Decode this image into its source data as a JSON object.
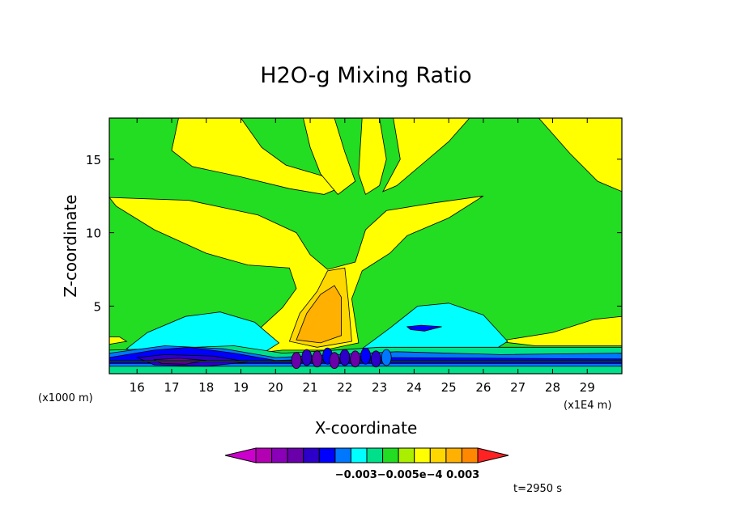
{
  "chart_data": {
    "type": "heatmap",
    "title": "H2O-g Mixing Ratio",
    "xlabel": "X-coordinate",
    "ylabel": "Z-coordinate",
    "x_unit_label": "(x1E4 m)",
    "y_unit_label": "(x1000 m)",
    "xlim": [
      15.2,
      30.0
    ],
    "ylim": [
      0.4,
      17.8
    ],
    "x_ticks": [
      16,
      17,
      18,
      19,
      20,
      21,
      22,
      23,
      24,
      25,
      26,
      27,
      28,
      29
    ],
    "y_ticks": [
      5,
      10,
      15
    ],
    "time_label": "t=2950 s",
    "colorbar": {
      "colors": [
        "#cc00cc",
        "#b300b3",
        "#8a00b8",
        "#6a00aa",
        "#2c00c8",
        "#0000ff",
        "#0077ff",
        "#00ffff",
        "#00e08a",
        "#22dd22",
        "#aaee00",
        "#ffff00",
        "#ffd700",
        "#ffb000",
        "#ff8800",
        "#ff2222"
      ],
      "tick_labels": [
        "-0.003",
        "-0.005e-4",
        "0.003"
      ],
      "tick_label_text": "−0.003−0.005e−4   0.003"
    },
    "background_level": "#22dd22",
    "regions": [
      {
        "level": "#ffff00",
        "description": "upper plume and anvil",
        "pts": [
          [
            15.2,
            12.4
          ],
          [
            17.5,
            12.2
          ],
          [
            19.5,
            11.2
          ],
          [
            20.6,
            10.0
          ],
          [
            21.0,
            8.5
          ],
          [
            21.5,
            7.5
          ],
          [
            22.3,
            8.0
          ],
          [
            22.6,
            10.2
          ],
          [
            23.2,
            11.5
          ],
          [
            24.5,
            12.0
          ],
          [
            26.0,
            12.5
          ],
          [
            25.0,
            11.0
          ],
          [
            23.8,
            9.8
          ],
          [
            23.3,
            8.6
          ],
          [
            22.5,
            7.4
          ],
          [
            22.2,
            5.5
          ],
          [
            22.4,
            2.5
          ],
          [
            21.4,
            2.0
          ],
          [
            20.2,
            2.0
          ],
          [
            19.4,
            1.8
          ],
          [
            19.0,
            2.5
          ],
          [
            19.6,
            3.6
          ],
          [
            20.2,
            4.9
          ],
          [
            20.6,
            6.2
          ],
          [
            20.4,
            7.6
          ],
          [
            19.2,
            7.8
          ],
          [
            18.0,
            8.6
          ],
          [
            16.5,
            10.2
          ],
          [
            15.4,
            11.8
          ]
        ]
      },
      {
        "level": "#ffff00",
        "pts": [
          [
            17.2,
            17.8
          ],
          [
            19.0,
            17.8
          ],
          [
            19.6,
            15.8
          ],
          [
            20.3,
            14.6
          ],
          [
            21.3,
            13.9
          ],
          [
            22.0,
            13.2
          ],
          [
            21.4,
            12.6
          ],
          [
            20.4,
            13.0
          ],
          [
            19.0,
            13.8
          ],
          [
            17.6,
            14.5
          ],
          [
            17.0,
            15.6
          ]
        ]
      },
      {
        "level": "#ffff00",
        "pts": [
          [
            20.8,
            17.8
          ],
          [
            21.7,
            17.8
          ],
          [
            22.0,
            15.5
          ],
          [
            22.3,
            13.5
          ],
          [
            21.8,
            12.6
          ],
          [
            21.3,
            14.0
          ],
          [
            21.0,
            15.8
          ]
        ]
      },
      {
        "level": "#ffff00",
        "pts": [
          [
            22.5,
            17.8
          ],
          [
            23.0,
            17.8
          ],
          [
            23.2,
            15.0
          ],
          [
            23.0,
            13.2
          ],
          [
            22.6,
            12.6
          ],
          [
            22.4,
            14.0
          ]
        ]
      },
      {
        "level": "#ffff00",
        "pts": [
          [
            23.4,
            17.8
          ],
          [
            25.6,
            17.8
          ],
          [
            25.0,
            16.2
          ],
          [
            24.3,
            14.8
          ],
          [
            23.5,
            13.2
          ],
          [
            23.1,
            12.8
          ],
          [
            23.6,
            15.0
          ]
        ]
      },
      {
        "level": "#ffff00",
        "pts": [
          [
            26.4,
            17.8
          ],
          [
            27.6,
            17.8
          ],
          [
            28.5,
            15.4
          ],
          [
            29.3,
            13.5
          ],
          [
            30.0,
            12.8
          ],
          [
            30.0,
            17.8
          ]
        ]
      },
      {
        "level": "#ffff00",
        "pts": [
          [
            26.4,
            2.6
          ],
          [
            28.0,
            3.2
          ],
          [
            29.2,
            4.1
          ],
          [
            30.0,
            4.3
          ],
          [
            30.0,
            2.3
          ],
          [
            27.5,
            2.3
          ]
        ]
      },
      {
        "level": "#ffff00",
        "pts": [
          [
            15.2,
            2.9
          ],
          [
            15.5,
            2.9
          ],
          [
            15.7,
            2.6
          ],
          [
            15.2,
            2.4
          ]
        ]
      },
      {
        "level": "#ffd700",
        "pts": [
          [
            20.4,
            2.6
          ],
          [
            20.7,
            4.5
          ],
          [
            21.2,
            6.0
          ],
          [
            21.5,
            7.4
          ],
          [
            22.0,
            7.6
          ],
          [
            22.1,
            5.4
          ],
          [
            22.2,
            2.6
          ],
          [
            21.2,
            2.2
          ]
        ]
      },
      {
        "level": "#ffb000",
        "pts": [
          [
            20.6,
            2.7
          ],
          [
            20.9,
            4.5
          ],
          [
            21.3,
            5.8
          ],
          [
            21.7,
            6.4
          ],
          [
            21.9,
            5.6
          ],
          [
            21.9,
            3.0
          ],
          [
            21.3,
            2.5
          ]
        ]
      },
      {
        "level": "#00ffff",
        "pts": [
          [
            15.7,
            2.1
          ],
          [
            16.3,
            3.2
          ],
          [
            17.4,
            4.3
          ],
          [
            18.4,
            4.6
          ],
          [
            19.4,
            3.9
          ],
          [
            20.1,
            2.5
          ],
          [
            19.7,
            1.9
          ],
          [
            18.0,
            1.7
          ],
          [
            16.3,
            1.7
          ]
        ]
      },
      {
        "level": "#00ffff",
        "pts": [
          [
            22.5,
            2.1
          ],
          [
            23.3,
            3.5
          ],
          [
            24.1,
            5.0
          ],
          [
            25.0,
            5.2
          ],
          [
            26.0,
            4.4
          ],
          [
            26.7,
            2.6
          ],
          [
            26.1,
            1.7
          ],
          [
            24.4,
            1.6
          ]
        ]
      },
      {
        "level": "#00e08a",
        "pts": [
          [
            15.2,
            2.0
          ],
          [
            16.5,
            2.1
          ],
          [
            18.8,
            2.3
          ],
          [
            20.2,
            1.8
          ],
          [
            21.0,
            1.9
          ],
          [
            23.0,
            2.2
          ],
          [
            26.5,
            2.2
          ],
          [
            30.0,
            2.2
          ],
          [
            30.0,
            0.4
          ],
          [
            15.2,
            0.4
          ]
        ]
      },
      {
        "level": "#0077ff",
        "pts": [
          [
            15.2,
            1.8
          ],
          [
            16.8,
            2.3
          ],
          [
            18.5,
            2.1
          ],
          [
            20.0,
            1.5
          ],
          [
            23.5,
            1.9
          ],
          [
            26.5,
            1.7
          ],
          [
            30.0,
            1.8
          ],
          [
            30.0,
            0.9
          ],
          [
            15.2,
            0.9
          ]
        ]
      },
      {
        "level": "#0000ff",
        "pts": [
          [
            15.2,
            1.5
          ],
          [
            16.5,
            2.0
          ],
          [
            17.5,
            2.2
          ],
          [
            18.8,
            1.8
          ],
          [
            20.0,
            1.3
          ],
          [
            23.0,
            1.5
          ],
          [
            30.0,
            1.4
          ],
          [
            30.0,
            1.1
          ],
          [
            15.2,
            1.1
          ]
        ]
      },
      {
        "level": "#2c00c8",
        "pts": [
          [
            16.0,
            1.5
          ],
          [
            16.8,
            1.7
          ],
          [
            18.2,
            1.6
          ],
          [
            19.2,
            1.2
          ],
          [
            18.0,
            0.9
          ],
          [
            16.5,
            1.0
          ]
        ]
      },
      {
        "level": "#6a00aa",
        "pts": [
          [
            16.5,
            1.35
          ],
          [
            17.2,
            1.45
          ],
          [
            18.0,
            1.3
          ],
          [
            17.4,
            1.05
          ],
          [
            16.7,
            1.1
          ]
        ]
      },
      {
        "level": "#22dd22",
        "pts": [
          [
            15.2,
            1.28
          ],
          [
            30.0,
            1.28
          ],
          [
            30.0,
            1.22
          ],
          [
            15.2,
            1.22
          ]
        ]
      },
      {
        "level": "#0000ff",
        "pts": [
          [
            23.8,
            3.6
          ],
          [
            24.2,
            3.7
          ],
          [
            24.8,
            3.6
          ],
          [
            24.3,
            3.3
          ],
          [
            23.9,
            3.4
          ]
        ]
      }
    ],
    "cells": [
      {
        "x": 20.6,
        "y": 1.3,
        "level": "#6a00aa"
      },
      {
        "x": 20.9,
        "y": 1.5,
        "level": "#2c00c8"
      },
      {
        "x": 21.2,
        "y": 1.4,
        "level": "#6a00aa"
      },
      {
        "x": 21.5,
        "y": 1.6,
        "level": "#0000ff"
      },
      {
        "x": 21.7,
        "y": 1.3,
        "level": "#6a00aa"
      },
      {
        "x": 22.0,
        "y": 1.5,
        "level": "#2c00c8"
      },
      {
        "x": 22.3,
        "y": 1.4,
        "level": "#6a00aa"
      },
      {
        "x": 22.6,
        "y": 1.6,
        "level": "#0000ff"
      },
      {
        "x": 22.9,
        "y": 1.4,
        "level": "#2c00c8"
      },
      {
        "x": 23.2,
        "y": 1.5,
        "level": "#0077ff"
      }
    ]
  }
}
